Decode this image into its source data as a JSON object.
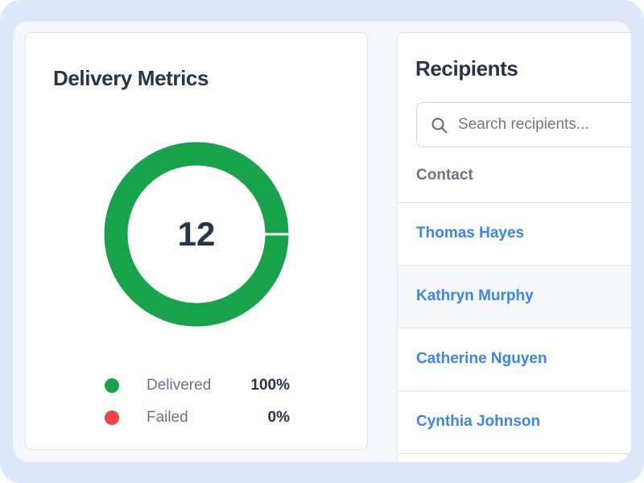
{
  "metrics": {
    "title": "Delivery Metrics",
    "total": "12",
    "legend": [
      {
        "label": "Delivered",
        "value": "100%",
        "color": "#16a34a"
      },
      {
        "label": "Failed",
        "value": "0%",
        "color": "#ef4444"
      }
    ]
  },
  "recipients": {
    "title": "Recipients",
    "search": {
      "placeholder": "Search recipients...",
      "value": ""
    },
    "column_header": "Contact",
    "contacts": [
      {
        "name": "Thomas Hayes"
      },
      {
        "name": "Kathryn Murphy"
      },
      {
        "name": "Catherine Nguyen"
      },
      {
        "name": "Cynthia Johnson"
      }
    ]
  },
  "colors": {
    "delivered": "#16a34a",
    "failed": "#ef4444",
    "link": "#3a86ec"
  }
}
